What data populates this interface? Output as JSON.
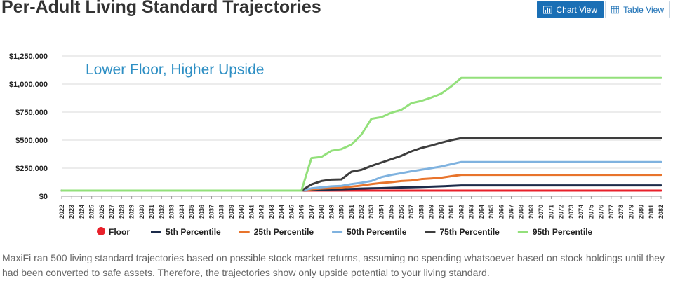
{
  "page": {
    "title": "Per-Adult Living Standard Trajectories",
    "caption": "MaxiFi ran 500 living standard trajectories based on possible stock market returns, assuming no spending whatsoever based on stock holdings until they had been converted to safe assets. Therefore, the trajectories show only upside potential to your living standard."
  },
  "toolbar": {
    "chart_view_label": "Chart View",
    "table_view_label": "Table View",
    "chart_view_icon": "bar-chart-icon",
    "table_view_icon": "grid-icon"
  },
  "chart_data": {
    "type": "line",
    "title": "",
    "annotation": "Lower Floor, Higher Upside",
    "xlabel": "",
    "ylabel": "",
    "ylim": [
      0,
      1250000
    ],
    "y_ticks": [
      0,
      250000,
      500000,
      750000,
      1000000,
      1250000
    ],
    "y_tick_labels": [
      "$0",
      "$250,000",
      "$500,000",
      "$750,000",
      "$1,000,000",
      "$1,250,000"
    ],
    "grid": true,
    "legend_position": "bottom",
    "x": [
      2022,
      2023,
      2024,
      2025,
      2026,
      2027,
      2028,
      2029,
      2030,
      2031,
      2032,
      2033,
      2034,
      2035,
      2036,
      2037,
      2038,
      2039,
      2040,
      2041,
      2042,
      2043,
      2044,
      2045,
      2046,
      2047,
      2048,
      2049,
      2050,
      2051,
      2052,
      2053,
      2054,
      2055,
      2056,
      2057,
      2058,
      2059,
      2060,
      2061,
      2062,
      2063,
      2064,
      2065,
      2066,
      2067,
      2068,
      2069,
      2070,
      2071,
      2072,
      2073,
      2074,
      2075,
      2076,
      2077,
      2078,
      2079,
      2080,
      2081,
      2082
    ],
    "series": [
      {
        "name": "Floor",
        "color": "#e8212b",
        "values": [
          50000,
          50000,
          50000,
          50000,
          50000,
          50000,
          50000,
          50000,
          50000,
          50000,
          50000,
          50000,
          50000,
          50000,
          50000,
          50000,
          50000,
          50000,
          50000,
          50000,
          50000,
          50000,
          50000,
          50000,
          50000,
          50000,
          50000,
          50000,
          50000,
          50000,
          50000,
          50000,
          50000,
          50000,
          50000,
          50000,
          50000,
          50000,
          50000,
          50000,
          50000,
          50000,
          50000,
          50000,
          50000,
          50000,
          50000,
          50000,
          50000,
          50000,
          50000,
          50000,
          50000,
          50000,
          50000,
          50000,
          50000,
          50000,
          50000,
          50000,
          50000
        ]
      },
      {
        "name": "5th Percentile",
        "color": "#1c2b4a",
        "values": [
          50000,
          50000,
          50000,
          50000,
          50000,
          50000,
          50000,
          50000,
          50000,
          50000,
          50000,
          50000,
          50000,
          50000,
          50000,
          50000,
          50000,
          50000,
          50000,
          50000,
          50000,
          50000,
          50000,
          50000,
          50000,
          55000,
          58000,
          60000,
          62000,
          65000,
          68000,
          70000,
          72000,
          75000,
          78000,
          80000,
          82000,
          85000,
          88000,
          92000,
          96000,
          96000,
          96000,
          96000,
          96000,
          96000,
          96000,
          96000,
          96000,
          96000,
          96000,
          96000,
          96000,
          96000,
          96000,
          96000,
          96000,
          96000,
          96000,
          96000,
          96000
        ]
      },
      {
        "name": "25th Percentile",
        "color": "#e8742c",
        "values": [
          50000,
          50000,
          50000,
          50000,
          50000,
          50000,
          50000,
          50000,
          50000,
          50000,
          50000,
          50000,
          50000,
          50000,
          50000,
          50000,
          50000,
          50000,
          50000,
          50000,
          50000,
          50000,
          50000,
          50000,
          50000,
          62000,
          68000,
          72000,
          78000,
          85000,
          95000,
          108000,
          118000,
          125000,
          135000,
          140000,
          152000,
          158000,
          165000,
          178000,
          190000,
          190000,
          190000,
          190000,
          190000,
          190000,
          190000,
          190000,
          190000,
          190000,
          190000,
          190000,
          190000,
          190000,
          190000,
          190000,
          190000,
          190000,
          190000,
          190000,
          190000
        ]
      },
      {
        "name": "50th Percentile",
        "color": "#7fb2df",
        "values": [
          50000,
          50000,
          50000,
          50000,
          50000,
          50000,
          50000,
          50000,
          50000,
          50000,
          50000,
          50000,
          50000,
          50000,
          50000,
          50000,
          50000,
          50000,
          50000,
          50000,
          50000,
          50000,
          50000,
          50000,
          50000,
          70000,
          80000,
          88000,
          92000,
          108000,
          120000,
          135000,
          170000,
          190000,
          205000,
          222000,
          236000,
          250000,
          265000,
          285000,
          305000,
          305000,
          305000,
          305000,
          305000,
          305000,
          305000,
          305000,
          305000,
          305000,
          305000,
          305000,
          305000,
          305000,
          305000,
          305000,
          305000,
          305000,
          305000,
          305000,
          305000
        ]
      },
      {
        "name": "75th Percentile",
        "color": "#3d3d3d",
        "values": [
          50000,
          50000,
          50000,
          50000,
          50000,
          50000,
          50000,
          50000,
          50000,
          50000,
          50000,
          50000,
          50000,
          50000,
          50000,
          50000,
          50000,
          50000,
          50000,
          50000,
          50000,
          50000,
          50000,
          50000,
          50000,
          105000,
          135000,
          148000,
          150000,
          218000,
          235000,
          270000,
          300000,
          330000,
          360000,
          400000,
          430000,
          452000,
          478000,
          500000,
          518000,
          518000,
          518000,
          518000,
          518000,
          518000,
          518000,
          518000,
          518000,
          518000,
          518000,
          518000,
          518000,
          518000,
          518000,
          518000,
          518000,
          518000,
          518000,
          518000,
          518000
        ]
      },
      {
        "name": "95th Percentile",
        "color": "#93e07b",
        "values": [
          50000,
          50000,
          50000,
          50000,
          50000,
          50000,
          50000,
          50000,
          50000,
          50000,
          50000,
          50000,
          50000,
          50000,
          50000,
          50000,
          50000,
          50000,
          50000,
          50000,
          50000,
          50000,
          50000,
          50000,
          50000,
          340000,
          350000,
          405000,
          420000,
          460000,
          550000,
          690000,
          705000,
          745000,
          770000,
          830000,
          850000,
          880000,
          915000,
          980000,
          1055000,
          1055000,
          1055000,
          1055000,
          1055000,
          1055000,
          1055000,
          1055000,
          1055000,
          1055000,
          1055000,
          1055000,
          1055000,
          1055000,
          1055000,
          1055000,
          1055000,
          1055000,
          1055000,
          1055000,
          1055000
        ]
      }
    ]
  }
}
